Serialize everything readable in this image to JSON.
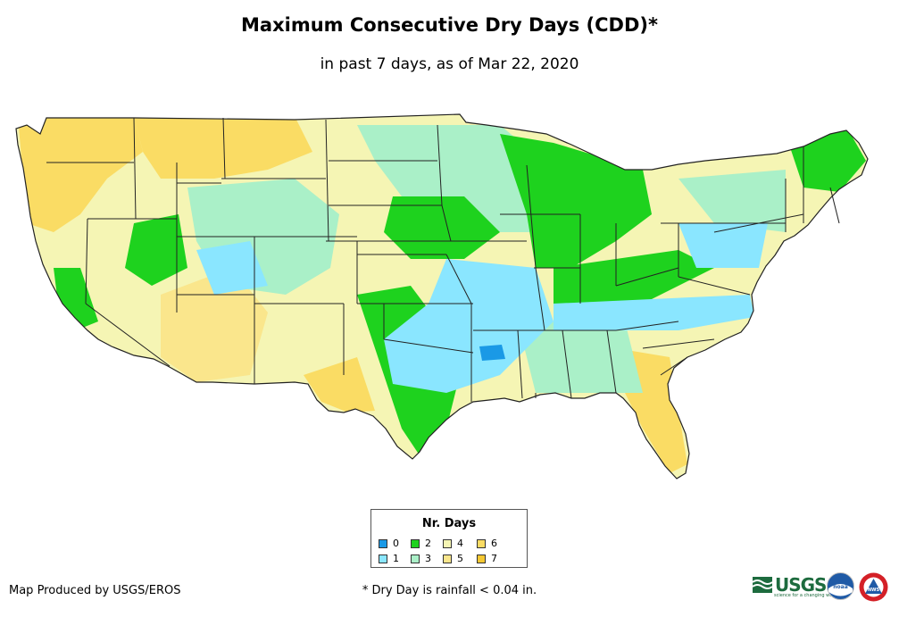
{
  "title": "Maximum Consecutive Dry Days (CDD)*",
  "subtitle": "in past 7 days, as of Mar 22, 2020",
  "legend": {
    "title": "Nr. Days",
    "items": [
      {
        "label": "0",
        "color": "#1a99e6"
      },
      {
        "label": "1",
        "color": "#8ae6ff"
      },
      {
        "label": "2",
        "color": "#1ed21e"
      },
      {
        "label": "3",
        "color": "#aaf0c8"
      },
      {
        "label": "4",
        "color": "#f5f5b4"
      },
      {
        "label": "5",
        "color": "#fae68c"
      },
      {
        "label": "6",
        "color": "#fadc64"
      },
      {
        "label": "7",
        "color": "#f5c832"
      }
    ]
  },
  "credit": "Map Produced by USGS/EROS",
  "footnote": "* Dry Day is rainfall < 0.04 in.",
  "logos": {
    "usgs": "USGS",
    "usgs_tagline": "science for a changing world",
    "noaa": "noaa",
    "nws": "NWS"
  },
  "colors": {
    "state_border": "#222222",
    "water": "#ffffff"
  }
}
